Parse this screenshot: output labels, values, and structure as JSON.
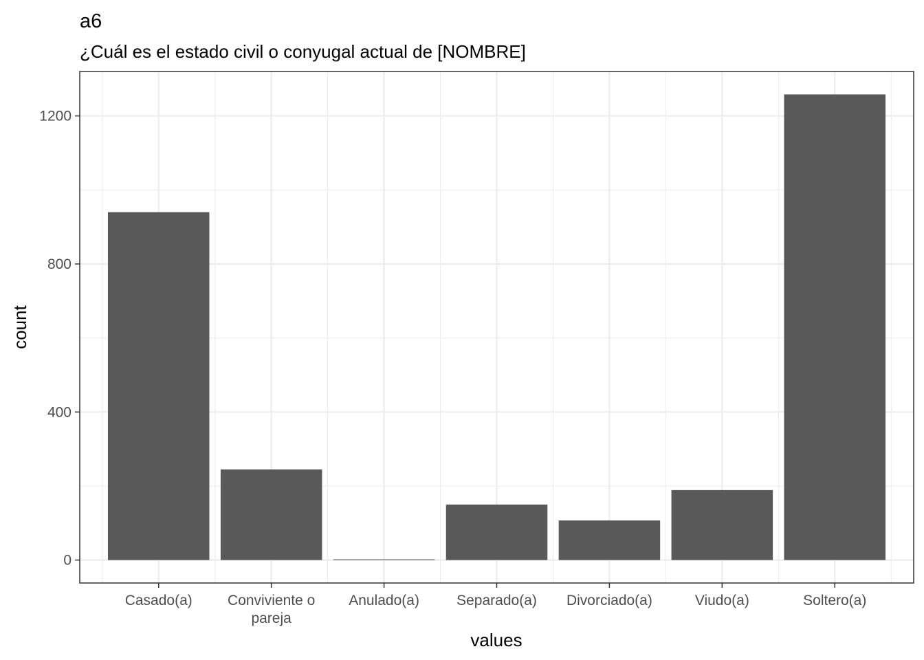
{
  "chart_data": {
    "type": "bar",
    "title": "a6",
    "subtitle": "¿Cuál es el estado civil o conyugal actual de [NOMBRE]",
    "xlabel": "values",
    "ylabel": "count",
    "categories": [
      "Casado(a)",
      "Conviviente o pareja",
      "Anulado(a)",
      "Separado(a)",
      "Divorciado(a)",
      "Viudo(a)",
      "Soltero(a)"
    ],
    "category_label_lines": [
      [
        "Casado(a)"
      ],
      [
        "Conviviente o",
        "pareja"
      ],
      [
        "Anulado(a)"
      ],
      [
        "Separado(a)"
      ],
      [
        "Divorciado(a)"
      ],
      [
        "Viudo(a)"
      ],
      [
        "Soltero(a)"
      ]
    ],
    "values": [
      940,
      245,
      2,
      150,
      107,
      189,
      1258
    ],
    "yticks": [
      0,
      400,
      800,
      1200
    ],
    "ylim": [
      -62,
      1320
    ],
    "grid": true,
    "bar_color": "#595959",
    "grid_color": "#ebebeb",
    "border_color": "#333333"
  }
}
